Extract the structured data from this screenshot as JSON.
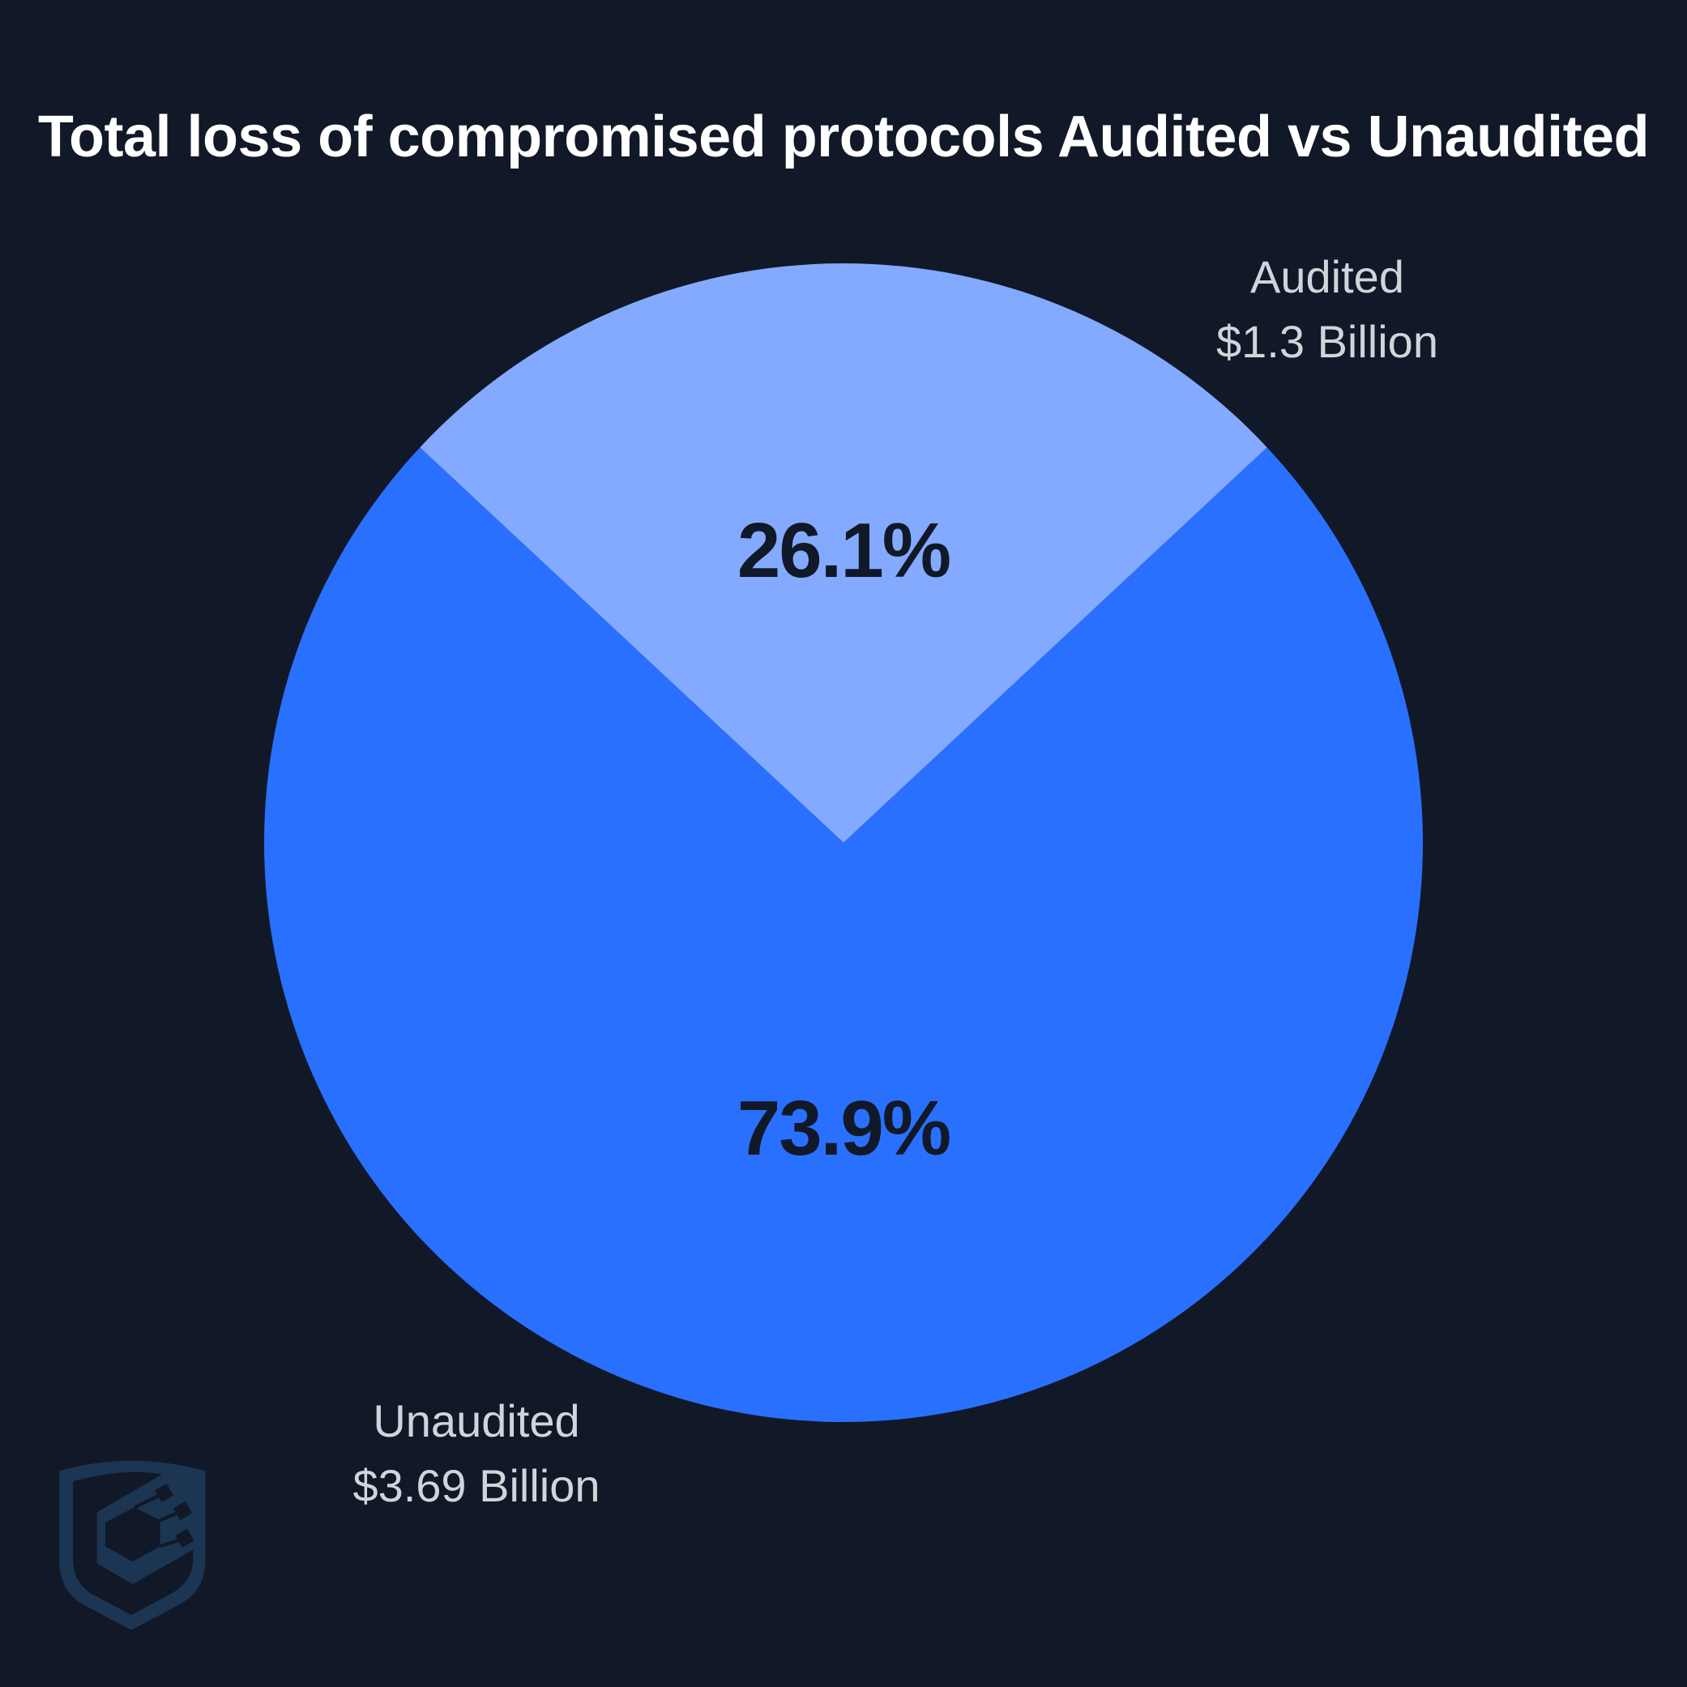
{
  "chart_data": {
    "type": "pie",
    "title": "Total loss of compromised protocols Audited vs Unaudited",
    "slices": [
      {
        "name": "Audited",
        "value": 1.3,
        "unit": "Billion USD",
        "percent": 26.1,
        "value_label": "$1.3 Billion",
        "percent_label": "26.1%",
        "color": "#83aaff"
      },
      {
        "name": "Unaudited",
        "value": 3.69,
        "unit": "Billion USD",
        "percent": 73.9,
        "value_label": "$3.69 Billion",
        "percent_label": "73.9%",
        "color": "#2970ff"
      }
    ],
    "legend": "none (external labels)",
    "start_angle_note": "Audited slice centered at top"
  },
  "header": {
    "title": "Total loss of compromised protocols Audited vs Unaudited"
  },
  "labels": {
    "audited": {
      "name": "Audited",
      "value": "$1.3 Billion",
      "percent": "26.1%"
    },
    "unaudited": {
      "name": "Unaudited",
      "value": "$3.69 Billion",
      "percent": "73.9%"
    }
  },
  "colors": {
    "background": "#111827",
    "audited": "#83aaff",
    "unaudited": "#2970ff",
    "logo": "#1b3553"
  },
  "logo": {
    "icon": "shield-cube-logo"
  }
}
